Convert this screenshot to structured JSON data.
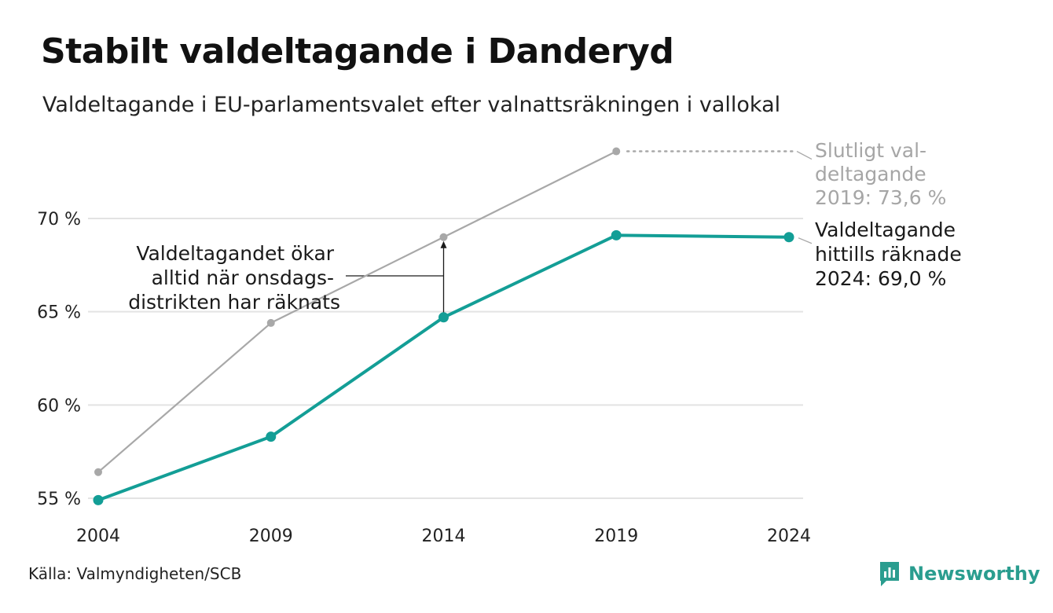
{
  "header": {
    "title": "Stabilt valdeltagande i Danderyd",
    "subtitle": "Valdeltagande i EU-parlamentsvalet efter valnattsräkningen i vallokal"
  },
  "chart_data": {
    "type": "line",
    "categories": [
      "2004",
      "2009",
      "2014",
      "2019",
      "2024"
    ],
    "ylim": [
      55,
      75
    ],
    "yticks": [
      {
        "value": 55,
        "label": "55 %"
      },
      {
        "value": 60,
        "label": "60 %"
      },
      {
        "value": 65,
        "label": "65 %"
      },
      {
        "value": 70,
        "label": "70 %"
      }
    ],
    "grid": true,
    "series": [
      {
        "name": "",
        "color": "#a8a8a8",
        "values": [
          56.4,
          64.4,
          69.0,
          73.6,
          null
        ]
      },
      {
        "name": "",
        "color": "#139e96",
        "values": [
          54.9,
          58.3,
          64.7,
          69.1,
          69.0
        ]
      }
    ],
    "annotations": {
      "final_2019": [
        "Slutligt val-",
        "deltagande",
        "2019: 73,6 %"
      ],
      "counted_2024": [
        "Valdeltagande",
        "hittills räknade",
        "2024: 69,0 %"
      ],
      "increase_note": [
        "Valdeltagandet ökar",
        "alltid när onsdags-",
        "distrikten har räknats"
      ]
    }
  },
  "footer": {
    "source": "Källa: Valmyndigheten/SCB",
    "brand": "Newsworthy",
    "brand_color": "#2a9d8f"
  }
}
